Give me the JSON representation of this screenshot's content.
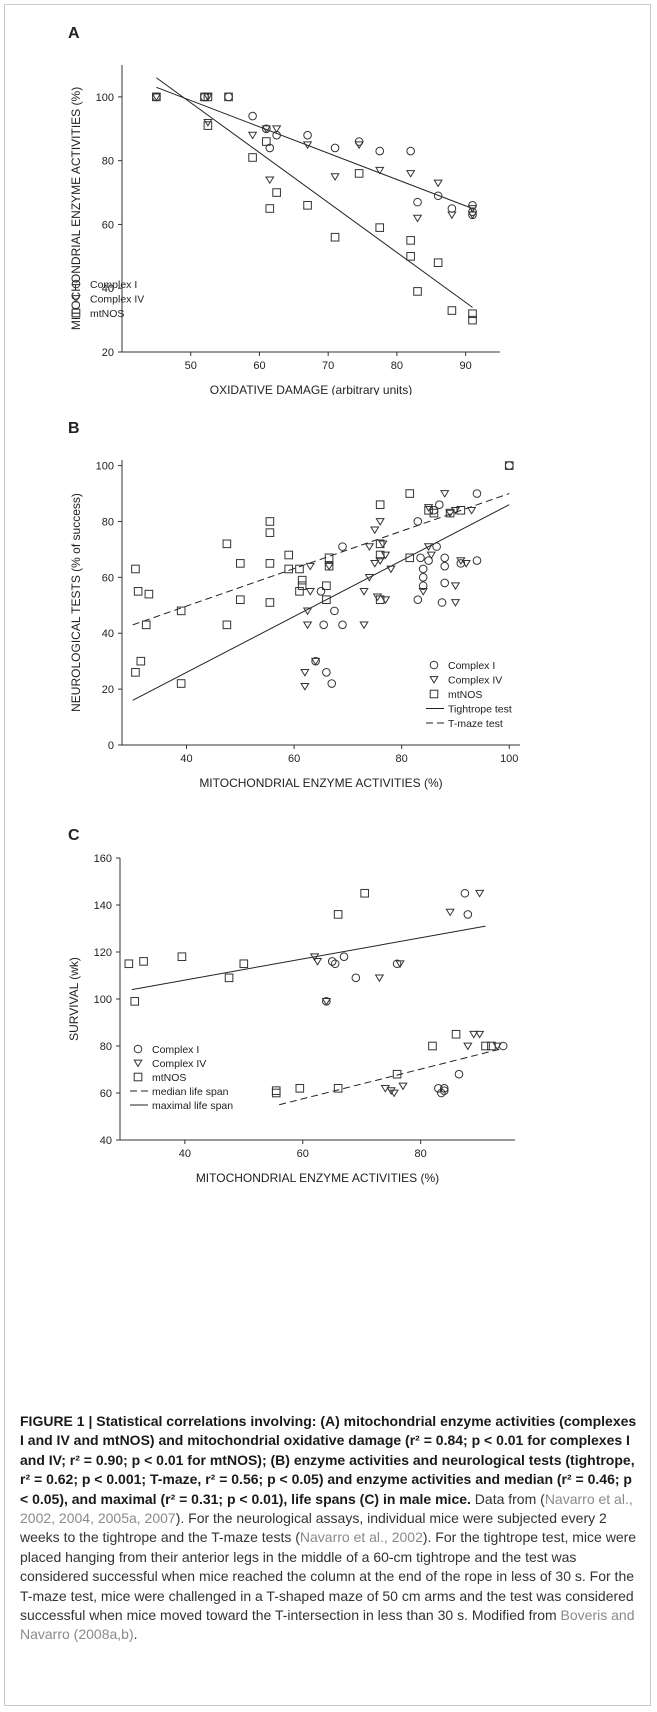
{
  "chart_data": [
    {
      "panel": "A",
      "type": "scatter",
      "xlabel": "OXIDATIVE DAMAGE (arbitrary units)",
      "ylabel": "MITOCHONDRIAL ENZYME ACTIVITIES (%)",
      "xlim": [
        40,
        95
      ],
      "ylim": [
        20,
        110
      ],
      "xticks": [
        50,
        60,
        70,
        80,
        90
      ],
      "yticks": [
        20,
        40,
        60,
        80,
        100
      ],
      "legend_position": "bottom-left",
      "series": [
        {
          "name": "Complex I",
          "marker": "circle",
          "points": [
            [
              45,
              100
            ],
            [
              52,
              100
            ],
            [
              55.5,
              100
            ],
            [
              59,
              94
            ],
            [
              61,
              90
            ],
            [
              61.5,
              84
            ],
            [
              62.5,
              88
            ],
            [
              67,
              88
            ],
            [
              71,
              84
            ],
            [
              74.5,
              86
            ],
            [
              77.5,
              83
            ],
            [
              82,
              83
            ],
            [
              83,
              67
            ],
            [
              86,
              69
            ],
            [
              88,
              65
            ],
            [
              91,
              66
            ],
            [
              91,
              64
            ],
            [
              91,
              63
            ]
          ]
        },
        {
          "name": "Complex IV",
          "marker": "triangle",
          "points": [
            [
              45,
              100
            ],
            [
              52.5,
              100
            ],
            [
              52.5,
              92
            ],
            [
              59,
              88
            ],
            [
              61,
              90
            ],
            [
              61.5,
              74
            ],
            [
              62.5,
              90
            ],
            [
              67,
              85
            ],
            [
              71,
              75
            ],
            [
              74.5,
              85
            ],
            [
              77.5,
              77
            ],
            [
              82,
              76
            ],
            [
              83,
              62
            ],
            [
              86,
              73
            ],
            [
              88,
              63
            ],
            [
              91,
              63
            ],
            [
              91,
              65
            ]
          ]
        },
        {
          "name": "mtNOS",
          "marker": "square",
          "points": [
            [
              45,
              100
            ],
            [
              52,
              100
            ],
            [
              52.5,
              100
            ],
            [
              52.5,
              91
            ],
            [
              55.5,
              100
            ],
            [
              59,
              81
            ],
            [
              61,
              86
            ],
            [
              61.5,
              65
            ],
            [
              62.5,
              70
            ],
            [
              67,
              66
            ],
            [
              71,
              56
            ],
            [
              74.5,
              76
            ],
            [
              77.5,
              59
            ],
            [
              82,
              55
            ],
            [
              82,
              50
            ],
            [
              83,
              39
            ],
            [
              86,
              48
            ],
            [
              88,
              33
            ],
            [
              91,
              32
            ],
            [
              91,
              30
            ]
          ]
        }
      ],
      "lines": [
        {
          "name": "",
          "style": "solid",
          "x": [
            45,
            91
          ],
          "y": [
            103,
            65
          ]
        },
        {
          "name": "",
          "style": "solid",
          "x": [
            45,
            91
          ],
          "y": [
            106,
            34
          ]
        }
      ]
    },
    {
      "panel": "B",
      "type": "scatter",
      "xlabel": "MITOCHONDRIAL ENZYME ACTIVITIES (%)",
      "ylabel": "NEUROLOGICAL TESTS (% of success)",
      "xlim": [
        28,
        102
      ],
      "ylim": [
        0,
        102
      ],
      "xticks": [
        40,
        60,
        80,
        100
      ],
      "yticks": [
        0,
        20,
        40,
        60,
        80,
        100
      ],
      "legend_position": "bottom-right",
      "series": [
        {
          "name": "Complex I",
          "marker": "circle",
          "points": [
            [
              64,
              30
            ],
            [
              65,
              55
            ],
            [
              65.5,
              43
            ],
            [
              66,
              26
            ],
            [
              67,
              22
            ],
            [
              67.5,
              48
            ],
            [
              69,
              43
            ],
            [
              69,
              71
            ],
            [
              83,
              52
            ],
            [
              83,
              80
            ],
            [
              83.5,
              67
            ],
            [
              84,
              63
            ],
            [
              84,
              60
            ],
            [
              84,
              57
            ],
            [
              85,
              66
            ],
            [
              86,
              84
            ],
            [
              86.5,
              71
            ],
            [
              87,
              86
            ],
            [
              87.5,
              51
            ],
            [
              88,
              58
            ],
            [
              88,
              67
            ],
            [
              88,
              64
            ],
            [
              91,
              65
            ],
            [
              94,
              90
            ],
            [
              94,
              66
            ],
            [
              100,
              100
            ]
          ]
        },
        {
          "name": "Complex IV",
          "marker": "triangle",
          "points": [
            [
              62,
              26
            ],
            [
              62,
              21
            ],
            [
              62.5,
              43
            ],
            [
              62.5,
              48
            ],
            [
              63,
              55
            ],
            [
              63,
              64
            ],
            [
              64,
              30
            ],
            [
              66.5,
              64
            ],
            [
              73,
              43
            ],
            [
              73,
              55
            ],
            [
              74,
              71
            ],
            [
              74,
              60
            ],
            [
              75,
              77
            ],
            [
              75,
              65
            ],
            [
              75.5,
              53
            ],
            [
              76,
              80
            ],
            [
              76,
              66
            ],
            [
              76.5,
              72
            ],
            [
              77,
              68
            ],
            [
              77,
              52
            ],
            [
              78,
              63
            ],
            [
              84,
              55
            ],
            [
              85,
              85
            ],
            [
              85,
              71
            ],
            [
              85.5,
              68
            ],
            [
              88,
              90
            ],
            [
              89,
              83
            ],
            [
              90,
              84
            ],
            [
              90,
              57
            ],
            [
              90,
              51
            ],
            [
              91,
              66
            ],
            [
              92,
              65
            ],
            [
              93,
              84
            ]
          ]
        },
        {
          "name": "mtNOS",
          "marker": "square",
          "points": [
            [
              30.5,
              26
            ],
            [
              30.5,
              63
            ],
            [
              31,
              55
            ],
            [
              31.5,
              30
            ],
            [
              32.5,
              43
            ],
            [
              33,
              54
            ],
            [
              39,
              22
            ],
            [
              39,
              48
            ],
            [
              47.5,
              43
            ],
            [
              47.5,
              72
            ],
            [
              50,
              52
            ],
            [
              50,
              65
            ],
            [
              55.5,
              80
            ],
            [
              55.5,
              76
            ],
            [
              55.5,
              65
            ],
            [
              55.5,
              51
            ],
            [
              59,
              68
            ],
            [
              59,
              63
            ],
            [
              61,
              63
            ],
            [
              61.5,
              59
            ],
            [
              61.5,
              57
            ],
            [
              61,
              55
            ],
            [
              66,
              52
            ],
            [
              66,
              57
            ],
            [
              66.5,
              64
            ],
            [
              66.5,
              67
            ],
            [
              76,
              86
            ],
            [
              76,
              72
            ],
            [
              76,
              68
            ],
            [
              76,
              52
            ],
            [
              81.5,
              90
            ],
            [
              81.5,
              67
            ],
            [
              85,
              84
            ],
            [
              86,
              83
            ],
            [
              89,
              83
            ],
            [
              91,
              84
            ],
            [
              100,
              100
            ]
          ]
        }
      ],
      "lines": [
        {
          "name": "Tightrope test",
          "style": "solid",
          "x": [
            30,
            100
          ],
          "y": [
            16,
            86
          ]
        },
        {
          "name": "T-maze test",
          "style": "dashed",
          "x": [
            30,
            100
          ],
          "y": [
            43,
            90
          ]
        }
      ]
    },
    {
      "panel": "C",
      "type": "scatter",
      "xlabel": "MITOCHONDRIAL ENZYME ACTIVITIES (%)",
      "ylabel": "SURVIVAL (wk)",
      "xlim": [
        29,
        96
      ],
      "ylim": [
        40,
        160
      ],
      "xticks": [
        40,
        60,
        80
      ],
      "yticks": [
        40,
        60,
        80,
        100,
        120,
        140,
        160
      ],
      "legend_position": "bottom-left",
      "series": [
        {
          "name": "Complex I",
          "marker": "circle",
          "points": [
            [
              64,
              99
            ],
            [
              65,
              116
            ],
            [
              65.5,
              115
            ],
            [
              67,
              118
            ],
            [
              69,
              109
            ],
            [
              76,
              115
            ],
            [
              83,
              62
            ],
            [
              83.5,
              60
            ],
            [
              84,
              62
            ],
            [
              84,
              61
            ],
            [
              86.5,
              68
            ],
            [
              87.5,
              145
            ],
            [
              88,
              136
            ],
            [
              94,
              80
            ]
          ]
        },
        {
          "name": "Complex IV",
          "marker": "triangle",
          "points": [
            [
              62,
              118
            ],
            [
              62.5,
              116
            ],
            [
              64,
              99
            ],
            [
              73,
              109
            ],
            [
              74,
              62
            ],
            [
              75,
              61
            ],
            [
              75.5,
              60
            ],
            [
              76.5,
              115
            ],
            [
              77,
              63
            ],
            [
              85,
              137
            ],
            [
              88,
              80
            ],
            [
              89,
              85
            ],
            [
              90,
              85
            ],
            [
              90,
              145
            ],
            [
              93,
              80
            ]
          ]
        },
        {
          "name": "mtNOS",
          "marker": "square",
          "points": [
            [
              30.5,
              115
            ],
            [
              31.5,
              99
            ],
            [
              33,
              116
            ],
            [
              39.5,
              118
            ],
            [
              47.5,
              109
            ],
            [
              50,
              115
            ],
            [
              55.5,
              60
            ],
            [
              55.5,
              61
            ],
            [
              59.5,
              62
            ],
            [
              66,
              136
            ],
            [
              66,
              62
            ],
            [
              70.5,
              145
            ],
            [
              76,
              68
            ],
            [
              82,
              80
            ],
            [
              86,
              85
            ],
            [
              91,
              80
            ],
            [
              92,
              80
            ]
          ]
        }
      ],
      "lines": [
        {
          "name": "median life span",
          "style": "dashed",
          "x": [
            56,
            94
          ],
          "y": [
            55,
            79
          ]
        },
        {
          "name": "maximal life span",
          "style": "solid",
          "x": [
            31,
            91
          ],
          "y": [
            104,
            131
          ]
        }
      ]
    }
  ],
  "caption": {
    "lead": "FIGURE 1 | Statistical correlations involving: (A) mitochondrial enzyme activities (complexes I and IV and mtNOS) and mitochondrial oxidative damage (r² = 0.84; p < 0.01 for complexes I and IV; r² = 0.90; p < 0.01 for mtNOS); (B) enzyme activities and neurological tests (tightrope, r² = 0.62; p < 0.001; T-maze, r² = 0.56; p < 0.05) and enzyme activities and median (r² = 0.46; p < 0.05), and maximal (r² = 0.31; p < 0.01), life spans (C) in male mice.",
    "t1": " Data from (",
    "ref1": "Navarro et al., 2002, 2004, 2005a, 2007",
    "t2": "). For the neurological assays, individual mice were subjected every 2 weeks to the tightrope and the T-maze tests (",
    "ref2": "Navarro et al., 2002",
    "t3": "). For the tightrope test, mice were placed hanging from their anterior legs in the middle of a 60-cm tightrope and the test was considered successful when mice reached the column at the end of the rope in less of 30 s. For the T-maze test, mice were challenged in a T-shaped maze of 50 cm arms and the test was considered successful when mice moved toward the T-intersection in less than 30 s. Modified from ",
    "ref3": "Boveris and Navarro (2008a,b)",
    "t4": "."
  }
}
